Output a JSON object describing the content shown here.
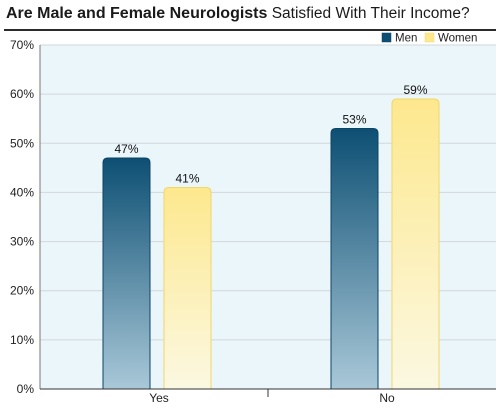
{
  "title": {
    "bold": "Are Male and Female Neurologists",
    "rest": " Satisfied With Their Income?"
  },
  "colors": {
    "men_top": "#0d4f73",
    "men_bottom": "#a9c8d8",
    "women_top": "#fde88e",
    "women_bottom": "#fbf8e2",
    "plot_bg": "#ebf6fb",
    "grid": "#d2d7da"
  },
  "chart_data": {
    "type": "bar",
    "title": "Are Male and Female Neurologists Satisfied With Their Income?",
    "categories": [
      "Yes",
      "No"
    ],
    "series": [
      {
        "name": "Men",
        "values": [
          47,
          53
        ],
        "labels": [
          "47%",
          "53%"
        ]
      },
      {
        "name": "Women",
        "values": [
          41,
          59
        ],
        "labels": [
          "41%",
          "59%"
        ]
      }
    ],
    "ylim": [
      0,
      70
    ],
    "yticks": [
      0,
      10,
      20,
      30,
      40,
      50,
      60,
      70
    ],
    "ytick_labels": [
      "0%",
      "10%",
      "20%",
      "30%",
      "40%",
      "50%",
      "60%",
      "70%"
    ],
    "xlabel": "",
    "ylabel": "",
    "grid": true,
    "legend": "top-right"
  }
}
